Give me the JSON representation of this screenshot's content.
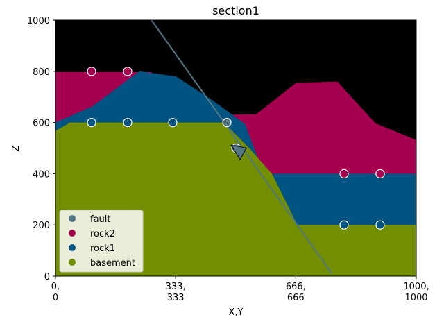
{
  "chart_data": {
    "type": "geological-section",
    "title": "section1",
    "xlabel": "X,Y",
    "ylabel": "Z",
    "xlim": [
      0,
      1000
    ],
    "ylim": [
      0,
      1000
    ],
    "x_ticks": [
      {
        "value": 0,
        "line1": "0,",
        "line2": "0"
      },
      {
        "value": 333,
        "line1": "333,",
        "line2": "333"
      },
      {
        "value": 666,
        "line1": "666,",
        "line2": "666"
      },
      {
        "value": 1000,
        "line1": "1000,",
        "line2": "1000"
      }
    ],
    "y_ticks": [
      0,
      200,
      400,
      600,
      800,
      1000
    ],
    "background_color": "#000000",
    "units": [
      {
        "name": "rock2",
        "color": "#a50050",
        "top": [
          [
            0,
            797
          ],
          [
            146,
            797
          ],
          [
            265,
            797
          ],
          [
            300,
            740
          ],
          [
            446,
            630
          ],
          [
            556,
            632
          ],
          [
            666,
            754
          ],
          [
            781,
            760
          ],
          [
            887,
            597
          ],
          [
            1000,
            532
          ]
        ]
      },
      {
        "name": "rock1",
        "color": "#015482",
        "top": [
          [
            0,
            600
          ],
          [
            102,
            663
          ],
          [
            232,
            800
          ],
          [
            334,
            780
          ],
          [
            432,
            690
          ],
          [
            525,
            595
          ],
          [
            578,
            400
          ],
          [
            1000,
            400
          ]
        ]
      },
      {
        "name": "basement",
        "color": "#728f02",
        "top": [
          [
            0,
            567
          ],
          [
            40,
            600
          ],
          [
            467,
            600
          ],
          [
            537,
            500
          ],
          [
            600,
            400
          ],
          [
            666,
            212
          ],
          [
            666,
            200
          ],
          [
            1000,
            200
          ]
        ]
      }
    ],
    "fault": {
      "name": "fault",
      "color": "#527682",
      "line": [
        [
          266,
          1000
        ],
        [
          766,
          10
        ]
      ],
      "orientation_marker": {
        "x": 506,
        "y": 490
      }
    },
    "series": [
      {
        "name": "fault",
        "color": "#527682",
        "x": [
          475,
          500
        ],
        "y": [
          600,
          500
        ]
      },
      {
        "name": "rock2",
        "color": "#a50050",
        "x": [
          100,
          200,
          800,
          900
        ],
        "y": [
          800,
          800,
          400,
          400
        ]
      },
      {
        "name": "rock1",
        "color": "#015482",
        "x": [
          100,
          200,
          325,
          800,
          900
        ],
        "y": [
          600,
          600,
          600,
          200,
          200
        ]
      },
      {
        "name": "basement",
        "color": "#728f02",
        "x": [],
        "y": []
      }
    ],
    "legend": {
      "position": "lower-left",
      "entries": [
        "fault",
        "rock2",
        "rock1",
        "basement"
      ]
    }
  }
}
